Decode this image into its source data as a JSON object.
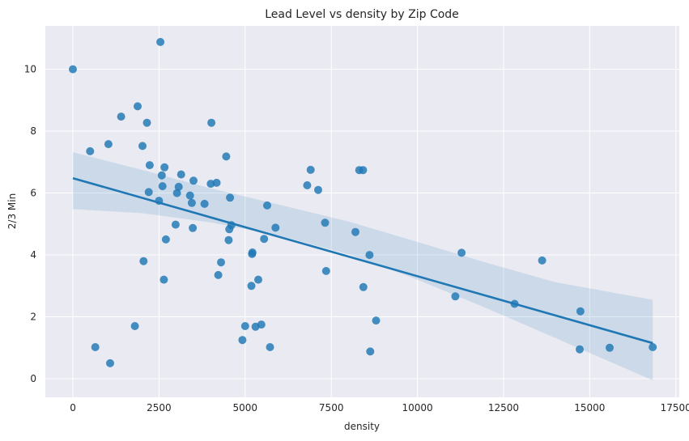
{
  "chart_data": {
    "type": "scatter",
    "title": "Lead Level vs density by Zip Code",
    "xlabel": "density",
    "ylabel": "2/3 Min",
    "xlim": [
      -800,
      17600
    ],
    "ylim": [
      -0.6,
      11.4
    ],
    "xticks": [
      0,
      2500,
      5000,
      7500,
      10000,
      12500,
      15000,
      17500
    ],
    "yticks": [
      0,
      2,
      4,
      6,
      8,
      10
    ],
    "grid": true,
    "colors": {
      "background": "#eaeaf2",
      "grid": "#ffffff",
      "points": "#1f77b4",
      "band": "#1f77b4"
    },
    "points": [
      [
        0,
        10.0
      ],
      [
        500,
        7.35
      ],
      [
        650,
        1.02
      ],
      [
        1030,
        7.58
      ],
      [
        1080,
        0.5
      ],
      [
        1400,
        8.47
      ],
      [
        1800,
        1.7
      ],
      [
        1880,
        8.8
      ],
      [
        2020,
        7.52
      ],
      [
        2050,
        3.8
      ],
      [
        2150,
        8.27
      ],
      [
        2200,
        6.03
      ],
      [
        2230,
        6.9
      ],
      [
        2500,
        5.75
      ],
      [
        2540,
        10.88
      ],
      [
        2580,
        6.57
      ],
      [
        2600,
        6.22
      ],
      [
        2640,
        3.2
      ],
      [
        2660,
        6.83
      ],
      [
        2700,
        4.5
      ],
      [
        2980,
        4.98
      ],
      [
        3020,
        6.0
      ],
      [
        3070,
        6.2
      ],
      [
        3140,
        6.6
      ],
      [
        3400,
        5.92
      ],
      [
        3450,
        5.68
      ],
      [
        3480,
        4.87
      ],
      [
        3500,
        6.4
      ],
      [
        3820,
        5.65
      ],
      [
        4000,
        6.3
      ],
      [
        4020,
        8.27
      ],
      [
        4170,
        6.33
      ],
      [
        4220,
        3.35
      ],
      [
        4300,
        3.76
      ],
      [
        4450,
        7.18
      ],
      [
        4520,
        4.48
      ],
      [
        4540,
        4.83
      ],
      [
        4560,
        5.85
      ],
      [
        4600,
        4.96
      ],
      [
        4920,
        1.25
      ],
      [
        5000,
        1.7
      ],
      [
        5180,
        3.0
      ],
      [
        5200,
        4.03
      ],
      [
        5210,
        4.08
      ],
      [
        5300,
        1.68
      ],
      [
        5380,
        3.2
      ],
      [
        5470,
        1.75
      ],
      [
        5550,
        4.52
      ],
      [
        5640,
        5.6
      ],
      [
        5720,
        1.02
      ],
      [
        5880,
        4.88
      ],
      [
        6800,
        6.25
      ],
      [
        6900,
        6.75
      ],
      [
        7120,
        6.1
      ],
      [
        7320,
        5.04
      ],
      [
        7350,
        3.48
      ],
      [
        8200,
        4.74
      ],
      [
        8310,
        6.74
      ],
      [
        8420,
        6.74
      ],
      [
        8430,
        2.96
      ],
      [
        8610,
        4.0
      ],
      [
        8630,
        0.88
      ],
      [
        8800,
        1.88
      ],
      [
        11100,
        2.66
      ],
      [
        11280,
        4.07
      ],
      [
        12820,
        2.42
      ],
      [
        13620,
        3.82
      ],
      [
        14710,
        0.95
      ],
      [
        14730,
        2.18
      ],
      [
        15580,
        1.0
      ],
      [
        16830,
        1.02
      ]
    ],
    "regression": {
      "x": [
        0,
        16830
      ],
      "y": [
        6.48,
        1.15
      ]
    },
    "confidence_band": {
      "x": [
        0,
        2000,
        4000,
        6000,
        8000,
        10000,
        12000,
        14000,
        16830
      ],
      "upper": [
        7.32,
        6.75,
        6.15,
        5.62,
        5.08,
        4.42,
        3.75,
        3.12,
        2.55
      ],
      "lower": [
        5.48,
        5.35,
        5.05,
        4.62,
        4.02,
        3.2,
        2.28,
        1.32,
        -0.05
      ]
    }
  }
}
